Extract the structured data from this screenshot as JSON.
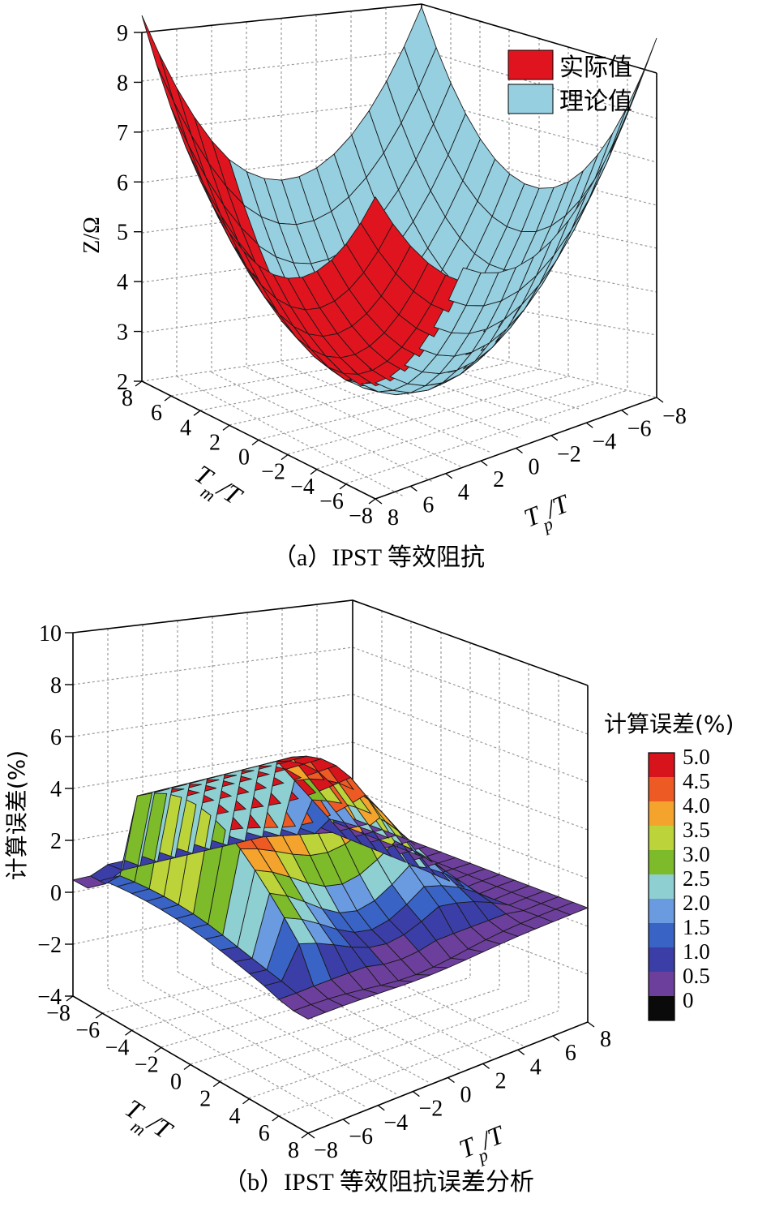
{
  "chart_data": [
    {
      "type": "surface",
      "caption": "（a）IPST 等效阻抗",
      "xlabel": "T_m/T",
      "ylabel": "T_p/T",
      "zlabel": "Z/Ω",
      "x_ticks": [
        "8",
        "6",
        "4",
        "2",
        "0",
        "−2",
        "−4",
        "−6",
        "−8"
      ],
      "y_ticks": [
        "8",
        "6",
        "4",
        "2",
        "0",
        "−2",
        "−4",
        "−6",
        "−8"
      ],
      "z_ticks": [
        "2",
        "3",
        "4",
        "5",
        "6",
        "7",
        "8",
        "9"
      ],
      "xlim": [
        -8,
        8
      ],
      "ylim": [
        -8,
        8
      ],
      "zlim": [
        2,
        9
      ],
      "legend": {
        "position": "top-right",
        "entries": [
          {
            "name": "实际值",
            "color": "#e0141e"
          },
          {
            "name": "理论值",
            "color": "#96cfe0"
          }
        ]
      },
      "series": [
        {
          "name": "实际值",
          "color": "#e0141e",
          "min_z": 2.3,
          "max_z": 8.7,
          "approx_shape": "bowl, minimum near (0,0)"
        },
        {
          "name": "理论值",
          "color": "#96cfe0",
          "min_z": 2.3,
          "max_z": 9.0,
          "approx_shape": "bowl, minimum near (0,0)"
        }
      ],
      "grid": true
    },
    {
      "type": "surface",
      "caption": "（b）IPST 等效阻抗误差分析",
      "xlabel": "T_m/T",
      "ylabel": "T_p/T",
      "zlabel": "计算误差(%)",
      "x_ticks": [
        "−8",
        "−6",
        "−4",
        "−2",
        "0",
        "2",
        "4",
        "6",
        "8"
      ],
      "y_ticks": [
        "−8",
        "−6",
        "−4",
        "−2",
        "0",
        "2",
        "4",
        "6",
        "8"
      ],
      "z_ticks": [
        "−4",
        "−2",
        "0",
        "2",
        "4",
        "6",
        "8",
        "10"
      ],
      "xlim": [
        -8,
        8
      ],
      "ylim": [
        -8,
        8
      ],
      "zlim": [
        -4,
        10
      ],
      "colorbar": {
        "title": "计算误差(%)",
        "levels": [
          "5.0",
          "4.5",
          "4.0",
          "3.5",
          "3.0",
          "2.5",
          "2.0",
          "1.5",
          "1.0",
          "0.5",
          "0"
        ],
        "colors": [
          "#d7141c",
          "#ee5a24",
          "#f4a42c",
          "#bcd43a",
          "#7dbb2a",
          "#8ecfd2",
          "#6a9be0",
          "#3a63c6",
          "#3b3ea6",
          "#6d3f9c",
          "#0a0a0a"
        ]
      },
      "series": [
        {
          "name": "计算误差",
          "min_z": -2.5,
          "max_z": 5.0
        }
      ],
      "grid": true
    }
  ]
}
